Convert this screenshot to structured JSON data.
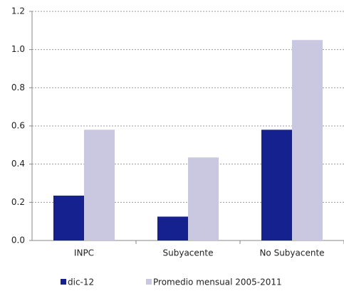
{
  "chart_data": {
    "type": "bar",
    "categories": [
      "INPC",
      "Subyacente",
      "No Subyacente"
    ],
    "series": [
      {
        "name": "dic-12",
        "color": "#14218f",
        "values": [
          0.235,
          0.125,
          0.58
        ]
      },
      {
        "name": "Promedio mensual 2005-2011",
        "color": "#c9c8e0",
        "values": [
          0.58,
          0.435,
          1.05
        ]
      }
    ],
    "ylim": [
      0,
      1.2
    ],
    "yticks": [
      {
        "value": 0,
        "label": "0.0"
      },
      0.2,
      0.4,
      0.6,
      0.8,
      {
        "value": 1,
        "label": "1.0"
      },
      1.2
    ],
    "grid": true,
    "legend": "bottom"
  }
}
